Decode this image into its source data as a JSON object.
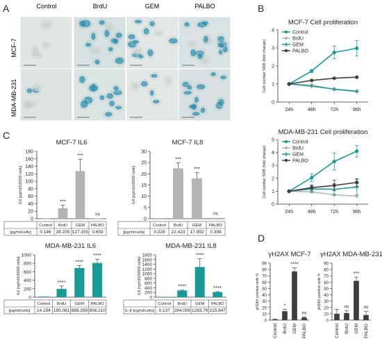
{
  "colors": {
    "teal": "#1a9a97",
    "gray_bar": "#b4b4b4",
    "dark_bar": "#3d3d3d",
    "light_gray": "#b7b7b7",
    "dark_line": "#404040",
    "stain_blue": "#2d8fb0",
    "axis": "#333333"
  },
  "panels": {
    "A": "A",
    "B": "B",
    "C": "C",
    "D": "D"
  },
  "micrographs": {
    "columns": [
      "Control",
      "BrdU",
      "GEM",
      "PALBO"
    ],
    "rows": [
      "MCF-7",
      "MDA-MB-231"
    ]
  },
  "chart_data": [
    {
      "id": "mcf7_prolif",
      "type": "line",
      "title": "MCF-7 Cell proliferation",
      "xlabel": "",
      "ylabel": "Cell number SRB (fold change)",
      "categories": [
        "24h",
        "48h",
        "72h",
        "96h"
      ],
      "ylim": [
        0,
        4
      ],
      "yticks": [
        0,
        1,
        2,
        3,
        4
      ],
      "legend": "top-left",
      "series": [
        {
          "name": "Control",
          "values": [
            1.0,
            1.72,
            2.75,
            2.98
          ],
          "err": [
            0.05,
            0.08,
            0.35,
            0.42
          ],
          "color": "#1a9a97"
        },
        {
          "name": "BrdU",
          "values": [
            1.0,
            0.95,
            0.7,
            0.58
          ],
          "err": [
            0.03,
            0.05,
            0.05,
            0.05
          ],
          "color": "#b7b7b7"
        },
        {
          "name": "GEM",
          "values": [
            1.0,
            0.88,
            0.72,
            0.6
          ],
          "err": [
            0.03,
            0.06,
            0.05,
            0.05
          ],
          "color": "#1a9a97"
        },
        {
          "name": "PALBO",
          "values": [
            1.0,
            1.2,
            1.32,
            1.38
          ],
          "err": [
            0.03,
            0.05,
            0.05,
            0.05
          ],
          "color": "#404040"
        }
      ]
    },
    {
      "id": "mda_prolif",
      "type": "line",
      "title": "MDA-MB-231 Cell proliferation",
      "xlabel": "",
      "ylabel": "Cell number SRB (fold change)",
      "categories": [
        "24h",
        "48h",
        "72h",
        "96h"
      ],
      "ylim": [
        0,
        5
      ],
      "yticks": [
        0,
        1,
        2,
        3,
        4,
        5
      ],
      "legend": "top-left",
      "series": [
        {
          "name": "Control",
          "values": [
            1.0,
            2.05,
            3.3,
            4.1
          ],
          "err": [
            0.05,
            0.3,
            0.65,
            0.45
          ],
          "color": "#1a9a97"
        },
        {
          "name": "BrdU",
          "values": [
            1.0,
            0.95,
            0.72,
            0.62
          ],
          "err": [
            0.03,
            0.08,
            0.08,
            0.05
          ],
          "color": "#b7b7b7"
        },
        {
          "name": "GEM",
          "values": [
            1.0,
            1.18,
            1.15,
            1.32
          ],
          "err": [
            0.03,
            0.25,
            0.45,
            0.6
          ],
          "color": "#1a9a97"
        },
        {
          "name": "PALBO",
          "values": [
            1.0,
            1.28,
            1.45,
            1.68
          ],
          "err": [
            0.03,
            0.2,
            0.4,
            0.3
          ],
          "color": "#404040"
        }
      ]
    },
    {
      "id": "mcf7_il6",
      "type": "bar",
      "title": "MCF-7 IL6",
      "ylabel": "IL6 [pg/ml/100000 cells]",
      "categories": [
        "Control",
        "BrdU",
        "GEM",
        "PALBO"
      ],
      "values": [
        0.146,
        28.205,
        127.15,
        0.659
      ],
      "err": [
        0,
        8,
        32,
        0
      ],
      "sig": [
        "",
        "***",
        "***",
        "ns"
      ],
      "ylim": [
        0,
        180
      ],
      "yticks": [
        0,
        20,
        40,
        60,
        80,
        100,
        120,
        140,
        160,
        180
      ],
      "color": "#b4b4b4",
      "table_header": "[pg/ml/cells]",
      "table_values": [
        "0.146",
        "28.205",
        "127.150",
        "0.659"
      ]
    },
    {
      "id": "mcf7_il8",
      "type": "bar",
      "title": "MCF-7 IL8",
      "ylabel": "IL8 [pg/ml/100000 cells]",
      "categories": [
        "Control",
        "BrdU",
        "GEM",
        "PALBO"
      ],
      "values": [
        0.228,
        22.423,
        17.992,
        0.398
      ],
      "err": [
        0,
        2.5,
        2.5,
        0
      ],
      "sig": [
        "",
        "***",
        "***",
        "ns"
      ],
      "ylim": [
        0,
        30
      ],
      "yticks": [
        0,
        5,
        10,
        15,
        20,
        25,
        30
      ],
      "color": "#b4b4b4",
      "table_header": "[pg/ml/cells]",
      "table_values": [
        "0.228",
        "22.423",
        "17.992",
        "0.398"
      ]
    },
    {
      "id": "mda_il6",
      "type": "bar",
      "title": "MDA-MB-231 IL6",
      "ylabel": "IL6 [ng/ml/100000 cells]",
      "categories": [
        "Control",
        "BrdU",
        "GEM",
        "PALBO"
      ],
      "values": [
        14.154,
        195.081,
        688.269,
        808.21
      ],
      "err": [
        0,
        70,
        60,
        90
      ],
      "sig": [
        "",
        "****",
        "****",
        "****"
      ],
      "ylim": [
        0,
        1000
      ],
      "yticks": [
        0,
        200,
        400,
        600,
        800,
        1000
      ],
      "color": "#1a9a97",
      "table_header": "[pg/ml/cells]",
      "table_values": [
        "14.154",
        "195.081",
        "688.269",
        "808.210"
      ]
    },
    {
      "id": "mda_il8",
      "type": "bar",
      "title": "MDA-MB-231 IL8",
      "ylabel": "IL8 [ng/ml/100000 cells]",
      "categories": [
        "Control",
        "BrdU",
        "GEM",
        "PALBO"
      ],
      "values": [
        0.137,
        284.009,
        1283.79,
        215.847
      ],
      "err": [
        0,
        20,
        350,
        20
      ],
      "sig": [
        "",
        "****",
        "****",
        "****"
      ],
      "ylim": [
        0,
        1800
      ],
      "yticks": [
        0,
        200,
        400,
        600,
        800,
        1000,
        1200,
        1400,
        1600,
        1800
      ],
      "color": "#1a9a97",
      "table_header": "IL-8 [ng/ml/cells]",
      "table_values": [
        "0.137",
        "284.009",
        "1283.79",
        "215.847"
      ]
    },
    {
      "id": "h2ax_mcf7",
      "type": "bar",
      "title": "γH2AX MCF-7",
      "ylabel": "γH2AX positive cells %",
      "categories": [
        "Control",
        "BrdU",
        "GEM",
        "PALBO"
      ],
      "values": [
        1,
        14,
        77,
        4
      ],
      "err": [
        0.5,
        3,
        6,
        1
      ],
      "sig": [
        "",
        "*",
        "****",
        "ns"
      ],
      "ylim": [
        0,
        90
      ],
      "yticks": [
        0,
        10,
        20,
        30,
        40,
        50,
        60,
        70,
        80,
        90
      ],
      "color": "#3d3d3d"
    },
    {
      "id": "h2ax_mda",
      "type": "bar",
      "title": "γH2AX MDA-MB-231",
      "ylabel": "γH2AX positive cells %",
      "categories": [
        "Control",
        "BrdU",
        "GEM",
        "PALBO"
      ],
      "values": [
        10,
        11,
        62,
        8
      ],
      "err": [
        7,
        4,
        6,
        6
      ],
      "sig": [
        "",
        "ns",
        "***",
        "ns"
      ],
      "ylim": [
        0,
        90
      ],
      "yticks": [
        0,
        10,
        20,
        30,
        40,
        50,
        60,
        70,
        80,
        90
      ],
      "color": "#3d3d3d"
    }
  ]
}
